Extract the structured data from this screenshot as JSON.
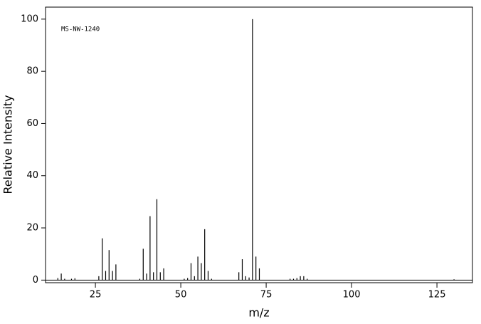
{
  "chart_data": {
    "type": "stem",
    "annotation": "MS-NW-1240",
    "x_label": "m/z",
    "y_label": "Relative Intensity",
    "color": "#000000",
    "x": [
      14,
      15,
      16,
      18,
      19,
      26,
      27,
      28,
      29,
      30,
      31,
      38,
      39,
      40,
      41,
      42,
      43,
      44,
      45,
      51,
      52,
      53,
      54,
      55,
      56,
      57,
      58,
      59,
      67,
      68,
      69,
      70,
      71,
      72,
      73,
      82,
      83,
      84,
      85,
      86,
      87,
      130
    ],
    "values": [
      0.8,
      2.5,
      0.5,
      0.5,
      0.7,
      1.5,
      16,
      3.5,
      11.5,
      3.5,
      6,
      0.5,
      12,
      2.5,
      24.5,
      3,
      31,
      3,
      4.5,
      0.5,
      0.8,
      6.5,
      1.5,
      9,
      6.5,
      19.5,
      3.5,
      0.5,
      3,
      8,
      1.5,
      1,
      100,
      9,
      4.5,
      0.5,
      0.5,
      0.8,
      1.5,
      1.5,
      0.5,
      0.3
    ],
    "xlim": [
      10.4,
      135.4
    ],
    "xticks": [
      25,
      50,
      75,
      100,
      125
    ],
    "ylim": [
      -1,
      104.6
    ],
    "yticks": [
      0,
      20,
      40,
      60,
      80,
      100
    ],
    "grid": false
  }
}
